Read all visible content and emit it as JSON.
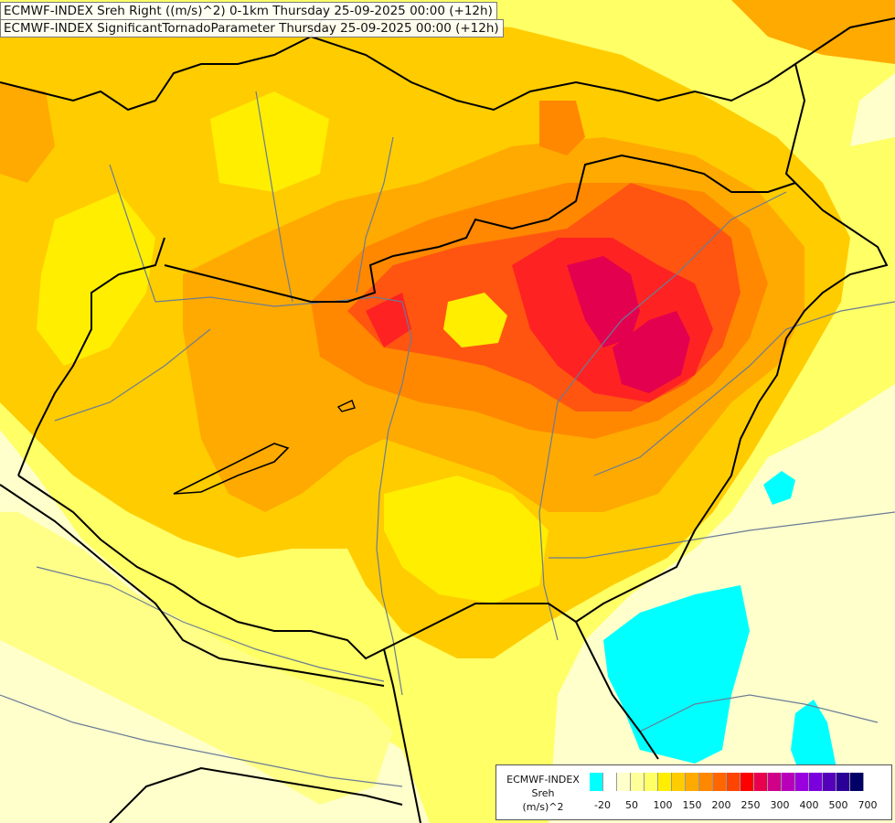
{
  "titles": {
    "line1": "ECMWF-INDEX Sreh Right ((m/s)^2) 0-1km Thursday 25-09-2025 00:00 (+12h)",
    "line2": "ECMWF-INDEX SignificantTornadoParameter Thursday 25-09-2025 00:00 (+12h)"
  },
  "legend": {
    "line1": "ECMWF-INDEX",
    "line2": "Sreh",
    "line3": "(m/s)^2",
    "ticks": [
      "-20",
      "50",
      "100",
      "150",
      "200",
      "250",
      "300",
      "400",
      "500",
      "700"
    ],
    "colors": [
      "#00ffff",
      "#ffffff",
      "#ffffcc",
      "#ffff99",
      "#ffff66",
      "#ffee00",
      "#ffcc00",
      "#ffaa00",
      "#ff8800",
      "#ff6600",
      "#ff4400",
      "#ff0000",
      "#e8004e",
      "#d00088",
      "#b800bb",
      "#9a00dd",
      "#7a00dd",
      "#5500bb",
      "#2a0099",
      "#000066"
    ]
  },
  "field_colors": {
    "pale": "#ffffcc",
    "light": "#ffff88",
    "yellow": "#ffee00",
    "gold": "#ffcc00",
    "orange": "#ffaa00",
    "deep_orange": "#ff8800",
    "red_orange": "#ff5511",
    "red": "#ff2222",
    "crimson": "#e3004f",
    "cyan": "#00ffff"
  }
}
